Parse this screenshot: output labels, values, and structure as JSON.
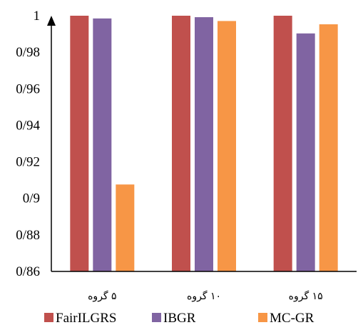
{
  "chart_data": {
    "type": "bar",
    "categories": [
      "۵ گروه",
      "۱۰ گروه",
      "۱۵ گروه"
    ],
    "series": [
      {
        "name": "FairILGRS",
        "color": "#C0504D",
        "values": [
          1.0,
          1.0,
          1.0
        ]
      },
      {
        "name": "IBGR",
        "color": "#8064A2",
        "values": [
          0.9985,
          0.9992,
          0.9903
        ]
      },
      {
        "name": "MC-GR",
        "color": "#F79646",
        "values": [
          0.9076,
          0.9971,
          0.9953
        ]
      }
    ],
    "yticks": [
      "0/86",
      "0/88",
      "0/9",
      "0/92",
      "0/94",
      "0/96",
      "0/98",
      "1"
    ],
    "ylim": [
      0.86,
      1.0
    ],
    "grid": false,
    "legend": "bottom"
  }
}
